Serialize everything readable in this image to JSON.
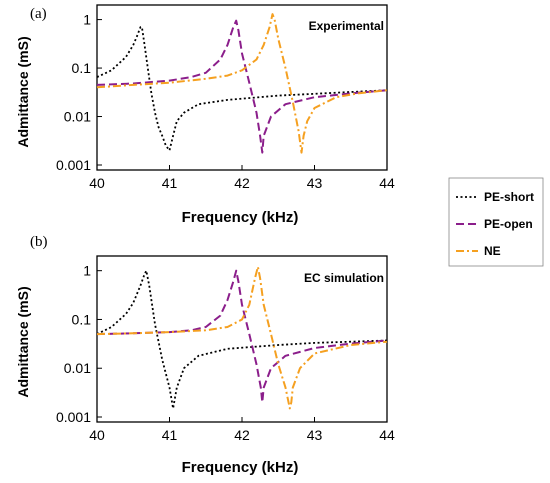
{
  "colors": {
    "pe_short": "#000000",
    "pe_open": "#8B1E8B",
    "ne": "#F5A020",
    "axis": "#000000"
  },
  "chart_data": [
    {
      "type": "line",
      "panel_label": "(a)",
      "title": "Experimental",
      "xlabel": "Frequency (kHz)",
      "ylabel": "Admittance (mS)",
      "xlim": [
        40,
        44
      ],
      "ylim": [
        0.001,
        2
      ],
      "yscale": "log",
      "xticks": [
        "40",
        "41",
        "42",
        "43",
        "44"
      ],
      "yticks": [
        "0.001",
        "0.01",
        "0.1",
        "1"
      ],
      "series": [
        {
          "name": "PE-short",
          "style": "dotted",
          "color": "#000000",
          "x": [
            40.0,
            40.2,
            40.4,
            40.5,
            40.55,
            40.6,
            40.62,
            40.65,
            40.7,
            40.75,
            40.8,
            40.85,
            40.9,
            40.95,
            41.0,
            41.05,
            41.1,
            41.2,
            41.4,
            41.8,
            42.5,
            43.5,
            44.0
          ],
          "y": [
            0.065,
            0.09,
            0.17,
            0.3,
            0.45,
            0.7,
            0.7,
            0.35,
            0.1,
            0.03,
            0.012,
            0.006,
            0.004,
            0.0025,
            0.002,
            0.004,
            0.008,
            0.012,
            0.018,
            0.022,
            0.027,
            0.032,
            0.035
          ]
        },
        {
          "name": "PE-open",
          "style": "dashed",
          "color": "#8B1E8B",
          "x": [
            40.0,
            40.5,
            41.0,
            41.3,
            41.5,
            41.7,
            41.8,
            41.88,
            41.92,
            41.95,
            42.0,
            42.1,
            42.2,
            42.25,
            42.28,
            42.3,
            42.4,
            42.6,
            43.0,
            43.5,
            44.0
          ],
          "y": [
            0.045,
            0.048,
            0.055,
            0.065,
            0.08,
            0.15,
            0.3,
            0.7,
            0.95,
            0.6,
            0.2,
            0.05,
            0.012,
            0.004,
            0.0018,
            0.004,
            0.01,
            0.018,
            0.025,
            0.03,
            0.035
          ]
        },
        {
          "name": "NE",
          "style": "dashdot",
          "color": "#F5A020",
          "x": [
            40.0,
            40.5,
            41.0,
            41.5,
            41.8,
            42.0,
            42.2,
            42.3,
            42.38,
            42.42,
            42.45,
            42.5,
            42.6,
            42.7,
            42.78,
            42.82,
            42.85,
            42.9,
            43.0,
            43.3,
            43.6,
            44.0
          ],
          "y": [
            0.04,
            0.045,
            0.05,
            0.06,
            0.07,
            0.09,
            0.15,
            0.3,
            0.7,
            1.3,
            1.0,
            0.4,
            0.1,
            0.02,
            0.005,
            0.0018,
            0.004,
            0.008,
            0.015,
            0.025,
            0.03,
            0.035
          ]
        }
      ]
    },
    {
      "type": "line",
      "panel_label": "(b)",
      "title": "EC simulation",
      "xlabel": "Frequency (kHz)",
      "ylabel": "Admittance (mS)",
      "xlim": [
        40,
        44
      ],
      "ylim": [
        0.001,
        2
      ],
      "yscale": "log",
      "xticks": [
        "40",
        "41",
        "42",
        "43",
        "44"
      ],
      "yticks": [
        "0.001",
        "0.01",
        "0.1",
        "1"
      ],
      "series": [
        {
          "name": "PE-short",
          "style": "dotted",
          "color": "#000000",
          "x": [
            40.0,
            40.2,
            40.4,
            40.5,
            40.6,
            40.65,
            40.68,
            40.72,
            40.8,
            40.9,
            41.0,
            41.05,
            41.1,
            41.2,
            41.4,
            41.8,
            42.5,
            43.0,
            43.5,
            44.0
          ],
          "y": [
            0.05,
            0.07,
            0.13,
            0.22,
            0.5,
            0.8,
            1.0,
            0.5,
            0.08,
            0.015,
            0.004,
            0.0015,
            0.004,
            0.01,
            0.018,
            0.025,
            0.03,
            0.033,
            0.035,
            0.037
          ]
        },
        {
          "name": "PE-open",
          "style": "dashed",
          "color": "#8B1E8B",
          "x": [
            40.0,
            40.5,
            41.0,
            41.3,
            41.5,
            41.7,
            41.8,
            41.88,
            41.92,
            41.95,
            42.0,
            42.1,
            42.2,
            42.26,
            42.28,
            42.3,
            42.4,
            42.6,
            43.0,
            43.5,
            44.0
          ],
          "y": [
            0.05,
            0.052,
            0.055,
            0.06,
            0.07,
            0.12,
            0.25,
            0.6,
            1.0,
            0.6,
            0.2,
            0.05,
            0.012,
            0.004,
            0.002,
            0.004,
            0.01,
            0.018,
            0.026,
            0.032,
            0.037
          ]
        },
        {
          "name": "NE",
          "style": "dashdot",
          "color": "#F5A020",
          "x": [
            40.0,
            40.5,
            41.0,
            41.5,
            41.8,
            42.0,
            42.1,
            42.18,
            42.22,
            42.25,
            42.3,
            42.4,
            42.5,
            42.6,
            42.66,
            42.68,
            42.7,
            42.8,
            43.0,
            43.5,
            44.0
          ],
          "y": [
            0.05,
            0.052,
            0.055,
            0.06,
            0.07,
            0.1,
            0.2,
            0.7,
            1.2,
            0.7,
            0.2,
            0.05,
            0.012,
            0.004,
            0.0015,
            0.002,
            0.004,
            0.01,
            0.02,
            0.03,
            0.035
          ]
        }
      ]
    }
  ],
  "legend": {
    "items": [
      {
        "label": "PE-short",
        "style": "dotted",
        "color": "#000000"
      },
      {
        "label": "PE-open",
        "style": "dashed",
        "color": "#8B1E8B"
      },
      {
        "label": "NE",
        "style": "dashdot",
        "color": "#F5A020"
      }
    ]
  }
}
